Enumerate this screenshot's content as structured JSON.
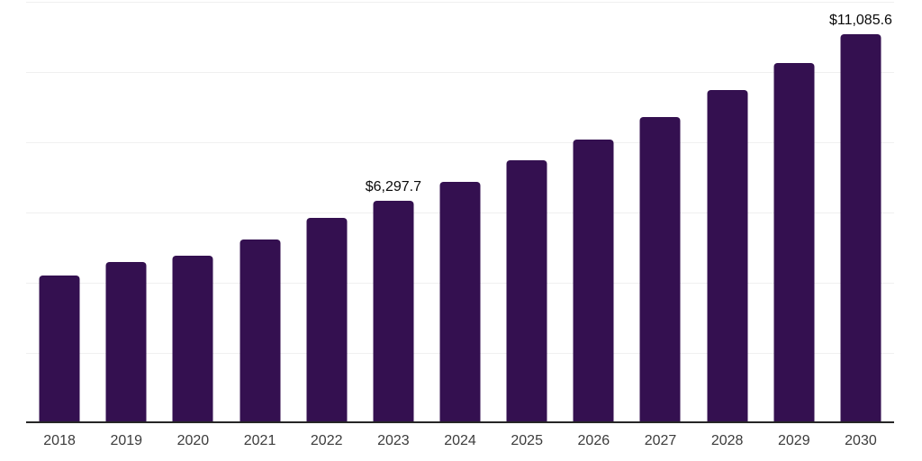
{
  "chart_data": {
    "type": "bar",
    "title": "",
    "xlabel": "",
    "ylabel": "",
    "categories": [
      "2018",
      "2019",
      "2020",
      "2021",
      "2022",
      "2023",
      "2024",
      "2025",
      "2026",
      "2027",
      "2028",
      "2029",
      "2030"
    ],
    "values": [
      4180,
      4560,
      4740,
      5200,
      5810,
      6297.7,
      6850,
      7460,
      8070,
      8710,
      9480,
      10240,
      11085.6
    ],
    "data_labels": [
      "",
      "",
      "",
      "",
      "",
      "$6,297.7",
      "",
      "",
      "",
      "",
      "",
      "",
      "$11,085.6"
    ],
    "ylim": [
      0,
      12000
    ],
    "gridline_interval": 2000,
    "grid": true,
    "legend_position": "none",
    "colors": {
      "bar": "#341050",
      "axis_line": "#262626",
      "gridline": "#f0f0f0",
      "value_label_text": "#0a0a0a",
      "tick_label_text": "#3c3c3c",
      "background": "#ffffff"
    }
  }
}
